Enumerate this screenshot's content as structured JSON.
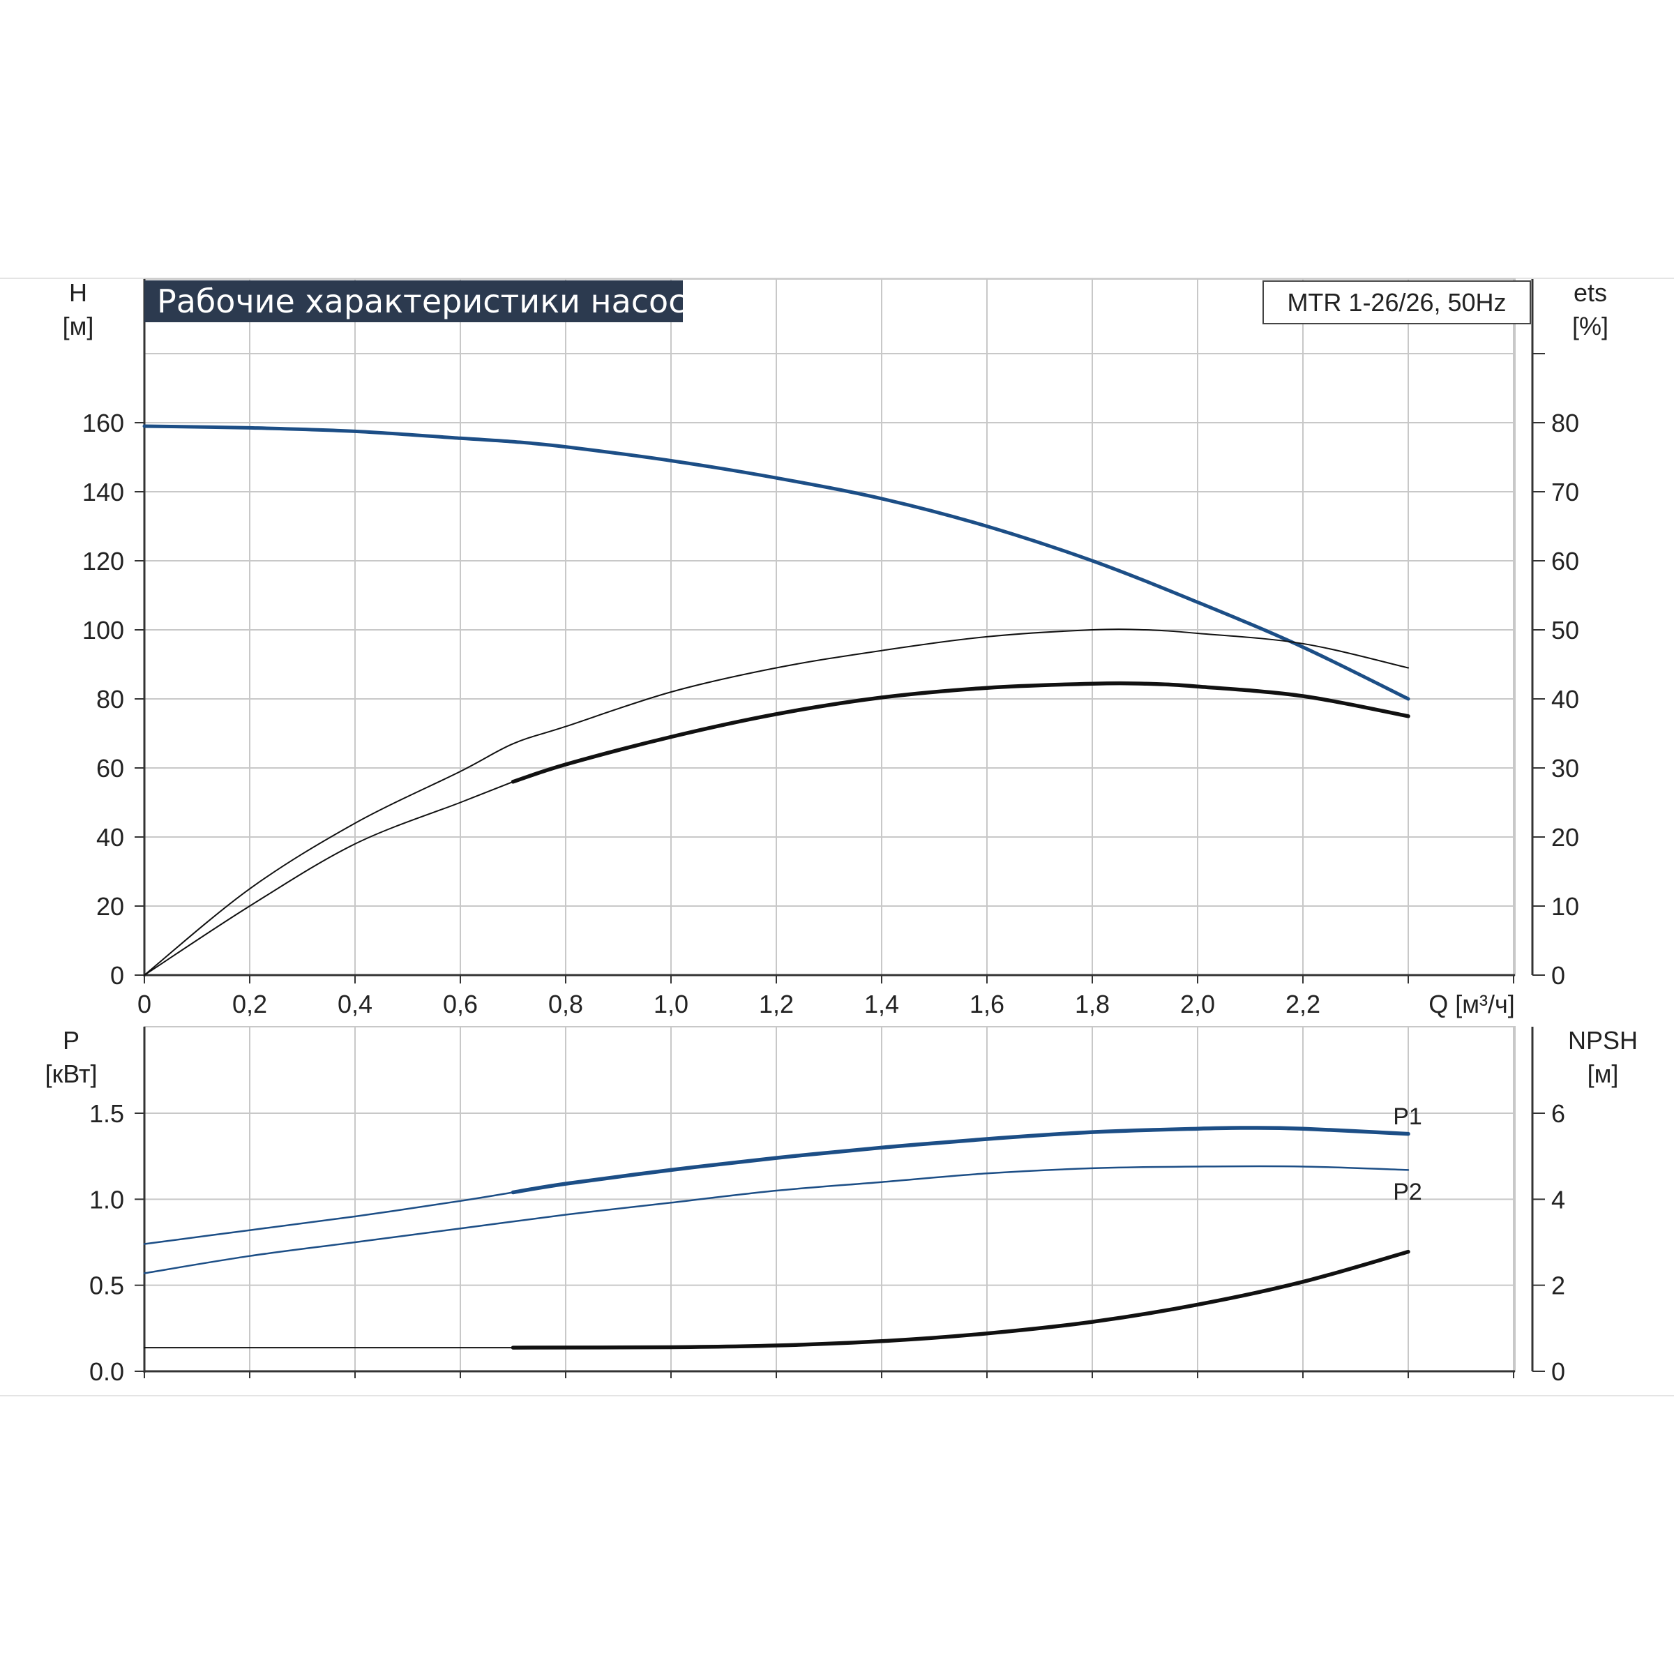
{
  "header": {
    "title": "Рабочие характеристики насоса",
    "model": "MTR 1-26/26, 50Hz"
  },
  "colors": {
    "blue": "#1c4e86",
    "black": "#111111",
    "grid": "#c8c8c8",
    "title_bg": "#2c3a4f"
  },
  "chart_data": [
    {
      "type": "line",
      "name": "upper",
      "xlabel": "Q [м³/ч]",
      "ylabel_left": [
        "H",
        "[м]"
      ],
      "ylabel_right": [
        "ets",
        "[%]"
      ],
      "xlim": [
        0,
        2.6
      ],
      "ylim_left": [
        0,
        180
      ],
      "ylim_right": [
        0,
        90
      ],
      "x_ticks": [
        "0",
        "0,2",
        "0,4",
        "0,6",
        "0,8",
        "1,0",
        "1,2",
        "1,4",
        "1,6",
        "1,8",
        "2,0",
        "2,2"
      ],
      "y_ticks_left": [
        "0",
        "20",
        "40",
        "60",
        "80",
        "100",
        "120",
        "140",
        "160"
      ],
      "y_ticks_right": [
        "0",
        "10",
        "20",
        "30",
        "40",
        "50",
        "60",
        "70",
        "80"
      ],
      "grid": true,
      "series": [
        {
          "axis": "left",
          "style": "blue",
          "x": [
            0,
            0.2,
            0.4,
            0.6,
            0.7,
            0.8,
            1.0,
            1.2,
            1.4,
            1.6,
            1.8,
            2.0,
            2.2,
            2.4
          ],
          "values": [
            159,
            158.5,
            157.5,
            155.5,
            154.5,
            153,
            149,
            144,
            138,
            130,
            120,
            108,
            95,
            80
          ]
        },
        {
          "axis": "right",
          "style": "black-thin",
          "x": [
            0,
            0.2,
            0.4,
            0.6,
            0.7,
            0.8,
            1.0,
            1.2,
            1.4,
            1.6,
            1.8,
            1.9,
            2.0,
            2.2,
            2.4
          ],
          "values": [
            0,
            12.5,
            22,
            29.5,
            33.5,
            36,
            41,
            44.5,
            47,
            49,
            50,
            50,
            49.5,
            48,
            44.5
          ]
        },
        {
          "axis": "right",
          "style": "black-thin",
          "x": [
            0,
            0.2,
            0.4,
            0.6,
            0.7
          ],
          "values": [
            0,
            10,
            19,
            25,
            28
          ]
        },
        {
          "axis": "right",
          "style": "black-thick",
          "x": [
            0.7,
            0.8,
            1.0,
            1.2,
            1.4,
            1.6,
            1.8,
            1.9,
            2.0,
            2.2,
            2.4
          ],
          "values": [
            28,
            30.5,
            34.5,
            37.8,
            40.2,
            41.6,
            42.2,
            42.2,
            41.8,
            40.4,
            37.5
          ]
        }
      ]
    },
    {
      "type": "line",
      "name": "lower",
      "ylabel_left": [
        "P",
        "[кВт]"
      ],
      "ylabel_right": [
        "NPSH",
        "[м]"
      ],
      "xlim": [
        0,
        2.6
      ],
      "ylim_left": [
        0,
        2
      ],
      "ylim_right": [
        0,
        8
      ],
      "y_ticks_left": [
        "0.0",
        "0.5",
        "1.0",
        "1.5"
      ],
      "y_ticks_right": [
        "0",
        "2",
        "4",
        "6"
      ],
      "grid": true,
      "series": [
        {
          "name": "P1",
          "axis": "left",
          "style": "blue-thin",
          "x": [
            0,
            0.2,
            0.4,
            0.6,
            0.7
          ],
          "values": [
            0.74,
            0.82,
            0.9,
            0.99,
            1.04
          ]
        },
        {
          "name": "P1",
          "axis": "left",
          "style": "blue-thick",
          "x": [
            0.7,
            0.8,
            1.0,
            1.2,
            1.4,
            1.6,
            1.8,
            2.0,
            2.1,
            2.2,
            2.4
          ],
          "values": [
            1.04,
            1.09,
            1.17,
            1.24,
            1.3,
            1.35,
            1.39,
            1.41,
            1.415,
            1.41,
            1.38
          ]
        },
        {
          "name": "P2",
          "axis": "left",
          "style": "blue-thin",
          "x": [
            0,
            0.2,
            0.4,
            0.6,
            0.8,
            1.0,
            1.2,
            1.4,
            1.6,
            1.8,
            2.0,
            2.2,
            2.4
          ],
          "values": [
            0.57,
            0.67,
            0.75,
            0.83,
            0.91,
            0.98,
            1.05,
            1.1,
            1.15,
            1.18,
            1.19,
            1.19,
            1.17
          ]
        },
        {
          "name": "NPSH",
          "axis": "right",
          "style": "black-thin",
          "x": [
            0,
            0.7
          ],
          "values": [
            0.55,
            0.55
          ]
        },
        {
          "name": "NPSH",
          "axis": "right",
          "style": "black-thick",
          "x": [
            0.7,
            1.0,
            1.2,
            1.4,
            1.6,
            1.8,
            2.0,
            2.2,
            2.4
          ],
          "values": [
            0.55,
            0.56,
            0.6,
            0.7,
            0.88,
            1.15,
            1.55,
            2.08,
            2.78
          ]
        }
      ],
      "labels": [
        "P1",
        "P2"
      ]
    }
  ]
}
